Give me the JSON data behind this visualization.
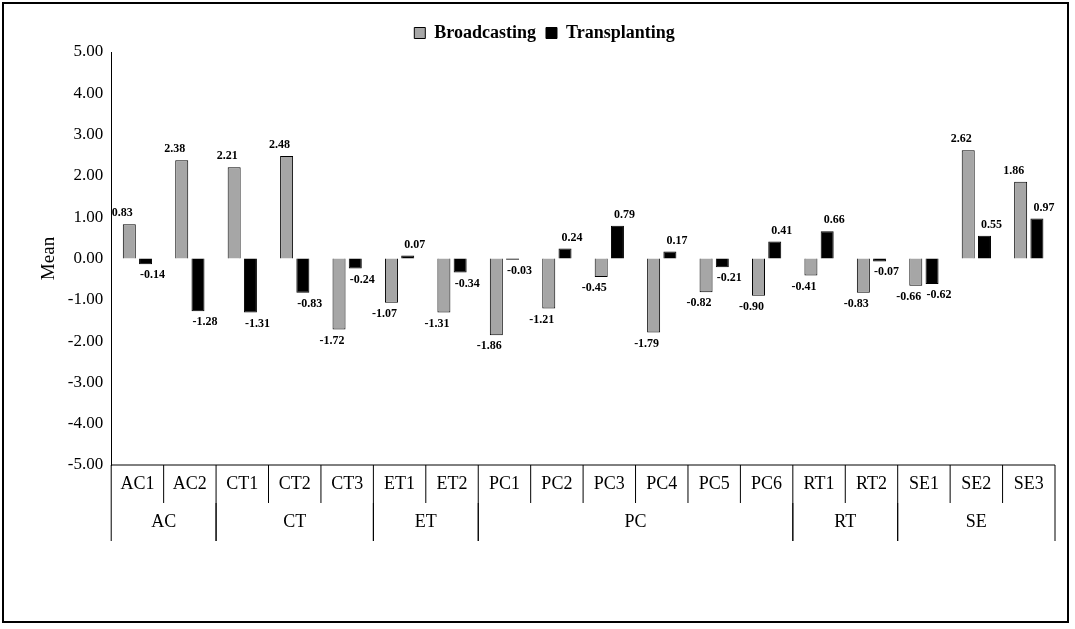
{
  "chart_data": {
    "type": "bar",
    "ylabel": "Mean",
    "categories": [
      "AC1",
      "AC2",
      "CT1",
      "CT2",
      "CT3",
      "ET1",
      "ET2",
      "PC1",
      "PC2",
      "PC3",
      "PC4",
      "PC5",
      "PC6",
      "RT1",
      "RT2",
      "SE1",
      "SE2",
      "SE3"
    ],
    "series": [
      {
        "name": "Broadcasting",
        "color": "#a6a6a6",
        "values": [
          0.83,
          2.38,
          2.21,
          2.48,
          -1.72,
          -1.07,
          -1.31,
          -1.86,
          -1.21,
          -0.45,
          -1.79,
          -0.82,
          -0.9,
          -0.41,
          -0.83,
          -0.66,
          2.62,
          1.86
        ],
        "value_labels": [
          "0.83",
          "2.38",
          "2.21",
          "2.48",
          "-1.72",
          "-1.07",
          "-1.31",
          "-1.86",
          "-1.21",
          "-0.45",
          "-1.79",
          "-0.82",
          "-0.90",
          "-0.41",
          "-0.83",
          "-0.66",
          "2.62",
          "1.86"
        ]
      },
      {
        "name": "Transplanting",
        "color": "#000000",
        "values": [
          -0.14,
          -1.28,
          -1.31,
          -0.83,
          -0.24,
          0.07,
          -0.34,
          -0.03,
          0.24,
          0.79,
          0.17,
          -0.21,
          0.41,
          0.66,
          -0.07,
          -0.62,
          0.55,
          0.97
        ],
        "value_labels": [
          "-0.14",
          "-1.28",
          "-1.31",
          "-0.83",
          "-0.24",
          "0.07",
          "-0.34",
          "-0.03",
          "0.24",
          "0.79",
          "0.17",
          "-0.21",
          "0.41",
          "0.66",
          "-0.07",
          "-0.62",
          "0.55",
          "0.97"
        ]
      }
    ],
    "ylim": [
      -5,
      5
    ],
    "yticks": [
      {
        "value": -5,
        "label": "-5.00"
      },
      {
        "value": -4,
        "label": "-4.00"
      },
      {
        "value": -3,
        "label": "-3.00"
      },
      {
        "value": -2,
        "label": "-2.00"
      },
      {
        "value": -1,
        "label": "-1.00"
      },
      {
        "value": 0,
        "label": "0.00"
      },
      {
        "value": 1,
        "label": "1.00"
      },
      {
        "value": 2,
        "label": "2.00"
      },
      {
        "value": 3,
        "label": "3.00"
      },
      {
        "value": 4,
        "label": "4.00"
      },
      {
        "value": 5,
        "label": "5.00"
      }
    ],
    "annotations": [
      "AC",
      "CT",
      "ET",
      "PC",
      "RT",
      "SE"
    ],
    "grid": false,
    "legend": "top"
  }
}
